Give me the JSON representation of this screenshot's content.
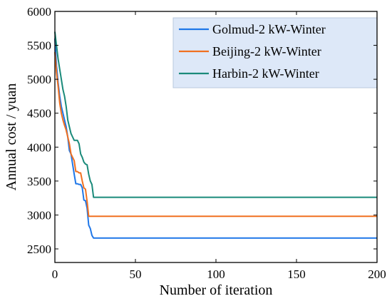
{
  "chart_data": {
    "type": "line",
    "xlabel": "Number of iteration",
    "ylabel": "Annual cost / yuan",
    "xlim": [
      0,
      200
    ],
    "ylim": [
      2300,
      6000
    ],
    "xticks": [
      0,
      50,
      100,
      150,
      200
    ],
    "yticks": [
      2500,
      3000,
      3500,
      4000,
      4500,
      5000,
      5500,
      6000
    ],
    "grid": false,
    "legend_position": "top-right",
    "legend_background": "#dde8f8",
    "series": [
      {
        "name": "Golmud-2 kW-Winter",
        "color": "#1f77e8",
        "points": [
          [
            0,
            5600
          ],
          [
            1,
            5200
          ],
          [
            2,
            4950
          ],
          [
            3,
            4750
          ],
          [
            4,
            4600
          ],
          [
            5,
            4500
          ],
          [
            6,
            4400
          ],
          [
            7,
            4300
          ],
          [
            8,
            4150
          ],
          [
            9,
            3950
          ],
          [
            10,
            3900
          ],
          [
            11,
            3750
          ],
          [
            12,
            3600
          ],
          [
            13,
            3460
          ],
          [
            14,
            3460
          ],
          [
            15,
            3450
          ],
          [
            16,
            3450
          ],
          [
            17,
            3400
          ],
          [
            18,
            3220
          ],
          [
            19,
            3210
          ],
          [
            20,
            3100
          ],
          [
            21,
            2850
          ],
          [
            22,
            2800
          ],
          [
            23,
            2700
          ],
          [
            24,
            2660
          ],
          [
            25,
            2660
          ],
          [
            200,
            2660
          ]
        ]
      },
      {
        "name": "Beijing-2 kW-Winter",
        "color": "#f07020",
        "points": [
          [
            0,
            5400
          ],
          [
            1,
            5100
          ],
          [
            2,
            4900
          ],
          [
            3,
            4650
          ],
          [
            4,
            4500
          ],
          [
            5,
            4400
          ],
          [
            6,
            4320
          ],
          [
            7,
            4250
          ],
          [
            8,
            4150
          ],
          [
            9,
            4050
          ],
          [
            10,
            3900
          ],
          [
            11,
            3850
          ],
          [
            12,
            3800
          ],
          [
            13,
            3640
          ],
          [
            14,
            3640
          ],
          [
            15,
            3620
          ],
          [
            16,
            3620
          ],
          [
            17,
            3500
          ],
          [
            18,
            3400
          ],
          [
            19,
            3380
          ],
          [
            20,
            3200
          ],
          [
            21,
            2980
          ],
          [
            22,
            2980
          ],
          [
            200,
            2980
          ]
        ]
      },
      {
        "name": "Harbin-2 kW-Winter",
        "color": "#1a8a7a",
        "points": [
          [
            0,
            5700
          ],
          [
            1,
            5500
          ],
          [
            2,
            5300
          ],
          [
            3,
            5150
          ],
          [
            4,
            5000
          ],
          [
            5,
            4850
          ],
          [
            6,
            4750
          ],
          [
            7,
            4600
          ],
          [
            8,
            4400
          ],
          [
            9,
            4300
          ],
          [
            10,
            4200
          ],
          [
            11,
            4150
          ],
          [
            12,
            4100
          ],
          [
            13,
            4100
          ],
          [
            14,
            4100
          ],
          [
            15,
            4050
          ],
          [
            16,
            3900
          ],
          [
            17,
            3850
          ],
          [
            18,
            3780
          ],
          [
            19,
            3750
          ],
          [
            20,
            3740
          ],
          [
            21,
            3600
          ],
          [
            22,
            3500
          ],
          [
            23,
            3450
          ],
          [
            24,
            3260
          ],
          [
            25,
            3260
          ],
          [
            200,
            3260
          ]
        ]
      }
    ]
  }
}
